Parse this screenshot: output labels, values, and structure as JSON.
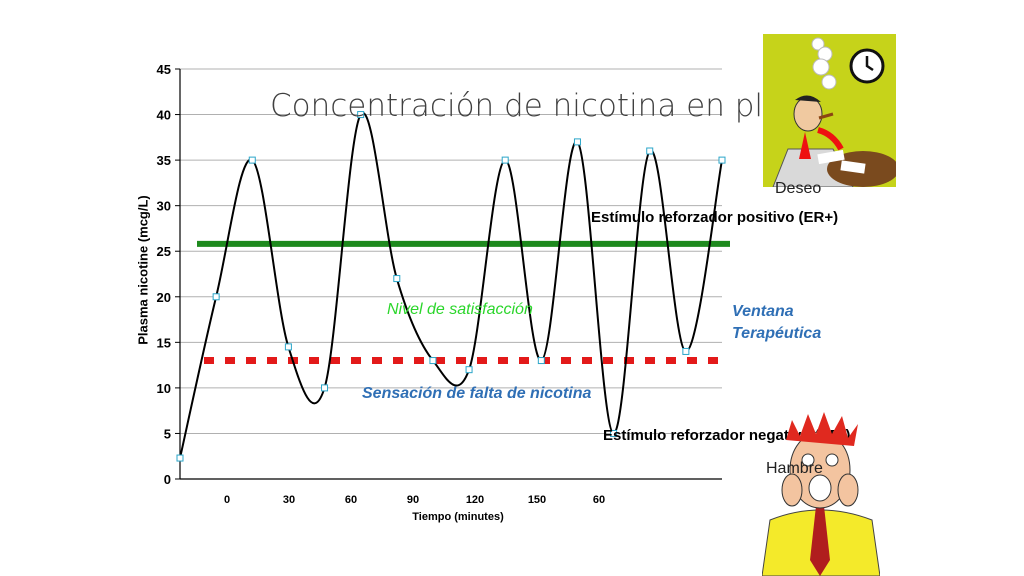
{
  "title": "Concentración de nicotina en plas",
  "chart_data": {
    "type": "line",
    "ylabel": "Plasma nicotine (mcg/L)",
    "xlabel": "Tiempo  (minutes)",
    "ylim": [
      0,
      45
    ],
    "yticks": [
      0,
      5,
      10,
      15,
      20,
      25,
      30,
      35,
      40,
      45
    ],
    "xtick_labels": [
      "0",
      "30",
      "60",
      "90",
      "120",
      "150",
      "60"
    ],
    "grid": true,
    "series": [
      {
        "color": "#000000",
        "marker_points": [
          {
            "t": 0,
            "y": 2.3
          },
          {
            "t": 1,
            "y": 20
          },
          {
            "t": 2,
            "y": 35
          },
          {
            "t": 3,
            "y": 14.5
          },
          {
            "t": 4,
            "y": 10
          },
          {
            "t": 5,
            "y": 40
          },
          {
            "t": 6,
            "y": 22
          },
          {
            "t": 7,
            "y": 13
          },
          {
            "t": 8,
            "y": 12
          },
          {
            "t": 9,
            "y": 35
          },
          {
            "t": 10,
            "y": 13
          },
          {
            "t": 11,
            "y": 37
          },
          {
            "t": 12,
            "y": 5
          },
          {
            "t": 13,
            "y": 36
          },
          {
            "t": 14,
            "y": 14
          },
          {
            "t": 15,
            "y": 35
          }
        ]
      }
    ],
    "reference_lines": [
      {
        "name": "Nivel de satisfacción",
        "y": 25.8,
        "color": "#1e8a1e",
        "style": "solid"
      },
      {
        "name": "Sensación de falta de nicotina",
        "y": 13,
        "color": "#e31a1a",
        "style": "dashed"
      }
    ]
  },
  "annotations": {
    "er_plus": "Estímulo reforzador positivo (ER+)",
    "er_minus": "Estímulo reforzador negativo (ER-)",
    "deseo": "Deseo",
    "hambre": "Hambre",
    "satisfaccion": "Nivel de satisfacción",
    "falta": "Sensación de falta de nicotina",
    "ventana_line1": "Ventana",
    "ventana_line2": "Terapéutica"
  },
  "icons": {
    "smoker": "smoking-man-clock-icon",
    "hungry": "screaming-man-icon"
  }
}
